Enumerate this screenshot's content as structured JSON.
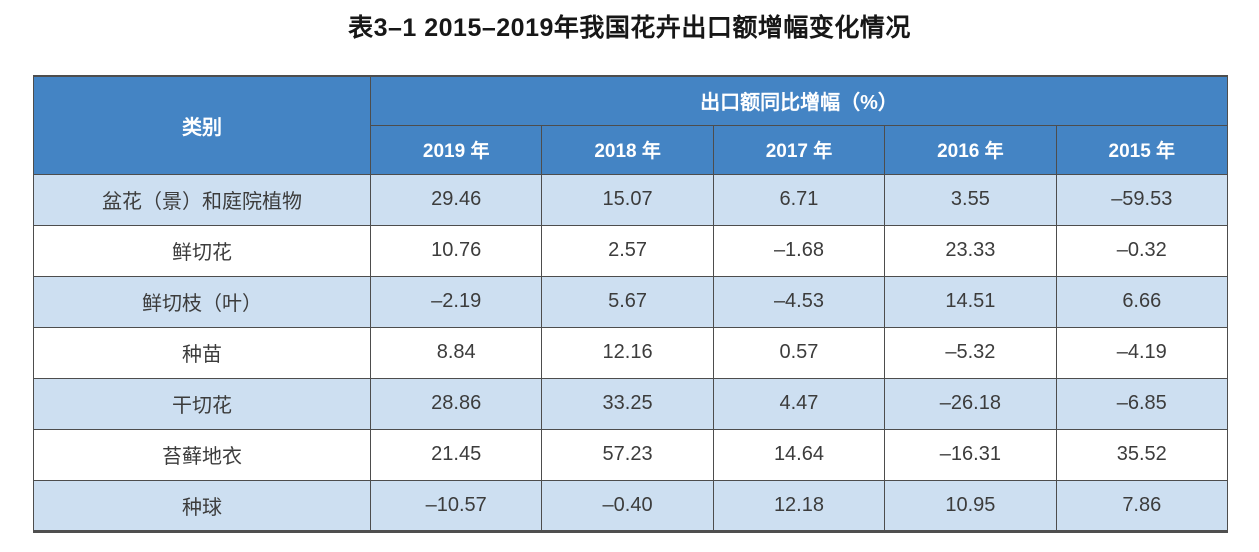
{
  "page": {
    "title": "表3–1 2015–2019年我国花卉出口额增幅变化情况"
  },
  "table": {
    "category_header": "类别",
    "group_header": "出口额同比增幅（%）",
    "year_headers": [
      "2019 年",
      "2018 年",
      "2017 年",
      "2016 年",
      "2015 年"
    ],
    "rows": [
      {
        "category": "盆花（景）和庭院植物",
        "values": [
          "29.46",
          "15.07",
          "6.71",
          "3.55",
          "–59.53"
        ]
      },
      {
        "category": "鲜切花",
        "values": [
          "10.76",
          "2.57",
          "–1.68",
          "23.33",
          "–0.32"
        ]
      },
      {
        "category": "鲜切枝（叶）",
        "values": [
          "–2.19",
          "5.67",
          "–4.53",
          "14.51",
          "6.66"
        ]
      },
      {
        "category": "种苗",
        "values": [
          "8.84",
          "12.16",
          "0.57",
          "–5.32",
          "–4.19"
        ]
      },
      {
        "category": "干切花",
        "values": [
          "28.86",
          "33.25",
          "4.47",
          "–26.18",
          "–6.85"
        ]
      },
      {
        "category": "苔藓地衣",
        "values": [
          "21.45",
          "57.23",
          "14.64",
          "–16.31",
          "35.52"
        ]
      },
      {
        "category": "种球",
        "values": [
          "–10.57",
          "–0.40",
          "12.18",
          "10.95",
          "7.86"
        ]
      }
    ]
  },
  "chart_data": {
    "type": "table",
    "title": "表3–1 2015–2019年我国花卉出口额增幅变化情况",
    "value_unit": "出口额同比增幅（%）",
    "categories": [
      "盆花（景）和庭院植物",
      "鲜切花",
      "鲜切枝（叶）",
      "种苗",
      "干切花",
      "苔藓地衣",
      "种球"
    ],
    "series": [
      {
        "name": "2019 年",
        "values": [
          29.46,
          10.76,
          -2.19,
          8.84,
          28.86,
          21.45,
          -10.57
        ]
      },
      {
        "name": "2018 年",
        "values": [
          15.07,
          2.57,
          5.67,
          12.16,
          33.25,
          57.23,
          -0.4
        ]
      },
      {
        "name": "2017 年",
        "values": [
          6.71,
          -1.68,
          -4.53,
          0.57,
          4.47,
          14.64,
          12.18
        ]
      },
      {
        "name": "2016 年",
        "values": [
          3.55,
          23.33,
          14.51,
          -5.32,
          -26.18,
          -16.31,
          10.95
        ]
      },
      {
        "name": "2015 年",
        "values": [
          -59.53,
          -0.32,
          6.66,
          -4.19,
          -6.85,
          35.52,
          7.86
        ]
      }
    ]
  },
  "colors": {
    "header_blue": "#4484C4",
    "row_alt_blue": "#CDDFF1",
    "border": "#4D4D4D",
    "text": "#3C3C3C"
  }
}
